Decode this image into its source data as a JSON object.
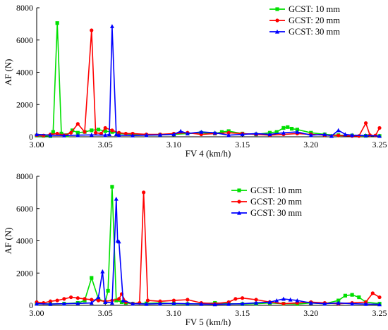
{
  "chart_data": [
    {
      "type": "line",
      "xlabel": "FV  4 (km/h)",
      "ylabel": "AF (N)",
      "xlim": [
        3.0,
        3.25
      ],
      "ylim": [
        0,
        8000
      ],
      "xticks": [
        "3.00",
        "3.05",
        "3.10",
        "3.15",
        "3.20",
        "3.25"
      ],
      "xtick_values": [
        3.0,
        3.05,
        3.1,
        3.15,
        3.2,
        3.25
      ],
      "yticks": [
        "0",
        "2000",
        "4000",
        "6000",
        "8000"
      ],
      "ytick_values": [
        0,
        2000,
        4000,
        6000,
        8000
      ],
      "legend_position": "top-right",
      "series": [
        {
          "name": "GCST: 10 mm",
          "color": "#00e000",
          "marker": "square",
          "x": [
            3.0,
            3.005,
            3.01,
            3.012,
            3.015,
            3.018,
            3.022,
            3.026,
            3.03,
            3.035,
            3.04,
            3.045,
            3.05,
            3.055,
            3.06,
            3.07,
            3.08,
            3.09,
            3.1,
            3.11,
            3.12,
            3.13,
            3.135,
            3.14,
            3.15,
            3.16,
            3.17,
            3.175,
            3.18,
            3.183,
            3.186,
            3.19,
            3.2,
            3.21,
            3.22,
            3.23,
            3.24,
            3.25
          ],
          "y": [
            80,
            60,
            40,
            300,
            7050,
            200,
            100,
            400,
            250,
            300,
            400,
            450,
            350,
            300,
            200,
            150,
            100,
            120,
            150,
            200,
            250,
            200,
            300,
            350,
            200,
            150,
            250,
            300,
            550,
            600,
            500,
            450,
            250,
            150,
            100,
            80,
            60,
            50
          ]
        },
        {
          "name": "GCST: 20 mm",
          "color": "#ff0000",
          "marker": "circle",
          "x": [
            3.0,
            3.005,
            3.01,
            3.015,
            3.02,
            3.025,
            3.03,
            3.035,
            3.04,
            3.043,
            3.047,
            3.05,
            3.055,
            3.06,
            3.065,
            3.07,
            3.08,
            3.09,
            3.1,
            3.11,
            3.12,
            3.13,
            3.14,
            3.15,
            3.16,
            3.17,
            3.18,
            3.19,
            3.2,
            3.21,
            3.22,
            3.23,
            3.235,
            3.24,
            3.243,
            3.247,
            3.25
          ],
          "y": [
            100,
            80,
            150,
            200,
            100,
            250,
            800,
            300,
            6600,
            250,
            200,
            550,
            400,
            250,
            200,
            200,
            150,
            150,
            200,
            250,
            150,
            200,
            250,
            200,
            150,
            100,
            150,
            200,
            150,
            100,
            80,
            50,
            50,
            850,
            100,
            80,
            550
          ]
        },
        {
          "name": "GCST: 30 mm",
          "color": "#0000ff",
          "marker": "triangle",
          "x": [
            3.0,
            3.01,
            3.02,
            3.03,
            3.04,
            3.05,
            3.053,
            3.055,
            3.058,
            3.06,
            3.07,
            3.08,
            3.09,
            3.1,
            3.105,
            3.11,
            3.12,
            3.13,
            3.14,
            3.15,
            3.16,
            3.17,
            3.18,
            3.19,
            3.2,
            3.21,
            3.215,
            3.22,
            3.225,
            3.23,
            3.24,
            3.25
          ],
          "y": [
            150,
            100,
            80,
            100,
            120,
            100,
            150,
            6850,
            150,
            100,
            80,
            100,
            120,
            150,
            350,
            200,
            300,
            250,
            100,
            150,
            200,
            150,
            250,
            300,
            100,
            150,
            50,
            400,
            150,
            100,
            80,
            50
          ]
        }
      ]
    },
    {
      "type": "line",
      "xlabel": "FV 5 (km/h)",
      "ylabel": "AF (N)",
      "xlim": [
        3.0,
        3.25
      ],
      "ylim": [
        0,
        8000
      ],
      "xticks": [
        "3.00",
        "3.05",
        "3.10",
        "3.15",
        "3.20",
        "3.25"
      ],
      "xtick_values": [
        3.0,
        3.05,
        3.1,
        3.15,
        3.2,
        3.25
      ],
      "yticks": [
        "0",
        "2000",
        "4000",
        "6000",
        "8000"
      ],
      "ytick_values": [
        0,
        2000,
        4000,
        6000,
        8000
      ],
      "legend_position": "top-right",
      "series": [
        {
          "name": "GCST: 10 mm",
          "color": "#00e000",
          "marker": "square",
          "x": [
            3.0,
            3.01,
            3.02,
            3.03,
            3.035,
            3.04,
            3.045,
            3.05,
            3.052,
            3.055,
            3.058,
            3.062,
            3.065,
            3.07,
            3.08,
            3.09,
            3.1,
            3.11,
            3.12,
            3.13,
            3.14,
            3.15,
            3.16,
            3.17,
            3.18,
            3.19,
            3.2,
            3.21,
            3.22,
            3.225,
            3.23,
            3.235,
            3.24,
            3.25
          ],
          "y": [
            100,
            80,
            100,
            150,
            300,
            1700,
            400,
            200,
            900,
            7350,
            300,
            200,
            150,
            100,
            120,
            150,
            100,
            80,
            100,
            150,
            100,
            80,
            100,
            150,
            100,
            80,
            150,
            100,
            300,
            600,
            650,
            500,
            200,
            100
          ]
        },
        {
          "name": "GCST: 20 mm",
          "color": "#ff0000",
          "marker": "circle",
          "x": [
            3.0,
            3.005,
            3.01,
            3.015,
            3.02,
            3.025,
            3.03,
            3.035,
            3.04,
            3.045,
            3.05,
            3.055,
            3.06,
            3.062,
            3.065,
            3.07,
            3.075,
            3.078,
            3.081,
            3.09,
            3.1,
            3.11,
            3.12,
            3.13,
            3.14,
            3.145,
            3.15,
            3.16,
            3.17,
            3.18,
            3.19,
            3.2,
            3.21,
            3.22,
            3.23,
            3.24,
            3.245,
            3.25
          ],
          "y": [
            200,
            150,
            250,
            300,
            400,
            500,
            450,
            400,
            350,
            300,
            250,
            300,
            400,
            700,
            200,
            100,
            150,
            7000,
            300,
            250,
            300,
            350,
            150,
            100,
            200,
            400,
            450,
            350,
            200,
            100,
            150,
            200,
            150,
            100,
            150,
            200,
            750,
            500
          ]
        },
        {
          "name": "GCST: 30 mm",
          "color": "#0000ff",
          "marker": "triangle",
          "x": [
            3.0,
            3.01,
            3.02,
            3.03,
            3.04,
            3.045,
            3.048,
            3.05,
            3.055,
            3.058,
            3.059,
            3.06,
            3.063,
            3.07,
            3.08,
            3.09,
            3.1,
            3.11,
            3.12,
            3.13,
            3.14,
            3.15,
            3.16,
            3.17,
            3.175,
            3.18,
            3.185,
            3.19,
            3.2,
            3.21,
            3.22,
            3.23,
            3.24,
            3.25
          ],
          "y": [
            100,
            80,
            100,
            120,
            150,
            500,
            2100,
            200,
            150,
            6600,
            4000,
            3950,
            300,
            100,
            80,
            100,
            120,
            100,
            80,
            60,
            80,
            100,
            150,
            200,
            300,
            400,
            350,
            300,
            150,
            100,
            150,
            100,
            80,
            60
          ]
        }
      ]
    }
  ]
}
